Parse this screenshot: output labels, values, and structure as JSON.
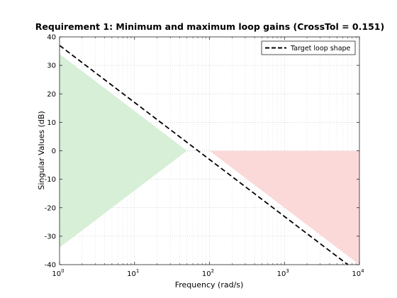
{
  "chart_data": {
    "type": "line",
    "title": "Requirement 1: Minimum and maximum loop gains (CrossTol = 0.151)",
    "xlabel": "Frequency (rad/s)",
    "ylabel": "Singular Values (dB)",
    "xscale": "log",
    "xlim": [
      1,
      10000
    ],
    "ylim": [
      -40,
      40
    ],
    "x_ticks": [
      {
        "base": "10",
        "exp": "0",
        "value": 1
      },
      {
        "base": "10",
        "exp": "1",
        "value": 10
      },
      {
        "base": "10",
        "exp": "2",
        "value": 100
      },
      {
        "base": "10",
        "exp": "3",
        "value": 1000
      },
      {
        "base": "10",
        "exp": "4",
        "value": 10000
      }
    ],
    "y_ticks": [
      "-40",
      "-30",
      "-20",
      "-10",
      "0",
      "10",
      "20",
      "30",
      "40"
    ],
    "grid": true,
    "legend_position": "top-right",
    "series": [
      {
        "name": "Target loop shape",
        "style": "dashed",
        "color": "#000000",
        "x": [
          1,
          7000
        ],
        "y": [
          37,
          -40
        ]
      }
    ],
    "regions": [
      {
        "kind": "min-gain",
        "color": "#d6efd6",
        "x": [
          1,
          1,
          50
        ],
        "y": [
          34,
          -34,
          0
        ]
      },
      {
        "kind": "max-gain",
        "color": "#fbd9d9",
        "x": [
          100,
          10000,
          10000
        ],
        "y": [
          0,
          0,
          -40
        ]
      }
    ]
  }
}
